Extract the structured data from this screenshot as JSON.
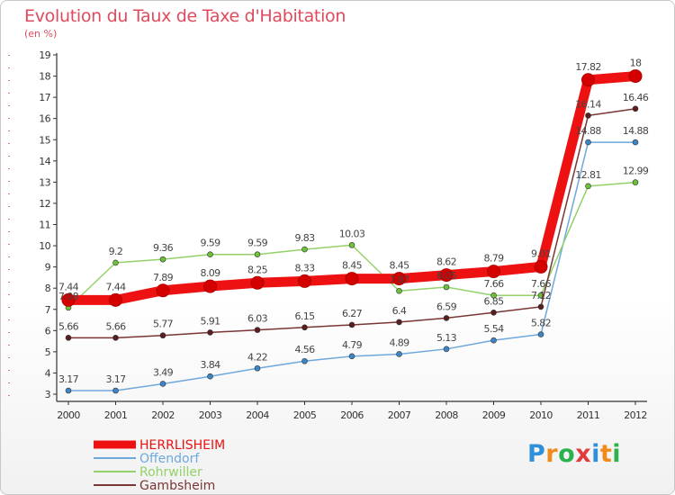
{
  "title": "Evolution du Taux de Taxe d'Habitation",
  "subtitle": "(en %)",
  "logo": {
    "letters": [
      "P",
      "r",
      "o",
      "x",
      "i",
      "t",
      "i"
    ],
    "colors": [
      "#2f8fd8",
      "#f08a1c",
      "#2bb24c",
      "#e23b3b",
      "#2f8fd8",
      "#f08a1c",
      "#2bb24c"
    ]
  },
  "chart_data": {
    "type": "line",
    "x": [
      "2000",
      "2001",
      "2002",
      "2003",
      "2004",
      "2005",
      "2006",
      "2007",
      "2008",
      "2009",
      "2010",
      "2011",
      "2012"
    ],
    "ylim": [
      3,
      19
    ],
    "yticks": [
      3,
      4,
      5,
      6,
      7,
      8,
      9,
      10,
      11,
      12,
      13,
      14,
      15,
      16,
      17,
      18,
      19
    ],
    "grid": false,
    "legend_position": "bottom-left",
    "series": [
      {
        "name": "HERRLISHEIM",
        "color": "#ee1111",
        "marker": "#d40000",
        "values": [
          7.44,
          7.44,
          7.89,
          8.09,
          8.25,
          8.33,
          8.45,
          8.45,
          8.62,
          8.79,
          9.01,
          17.82,
          18
        ],
        "labels": [
          "7.44",
          "7.44",
          "7.89",
          "8.09",
          "8.25",
          "8.33",
          "8.45",
          "8.45",
          "8.62",
          "8.79",
          "9.01",
          "17.82",
          "18"
        ]
      },
      {
        "name": "Offendorf",
        "color": "#6fa8dc",
        "marker": "#3d85c6",
        "values": [
          3.17,
          3.17,
          3.49,
          3.84,
          4.22,
          4.56,
          4.79,
          4.89,
          5.13,
          5.54,
          5.82,
          14.88,
          14.88
        ],
        "labels": [
          "3.17",
          "3.17",
          "3.49",
          "3.84",
          "4.22",
          "4.56",
          "4.79",
          "4.89",
          "5.13",
          "5.54",
          "5.82",
          "14.88",
          "14.88"
        ]
      },
      {
        "name": "Rohrwiller",
        "color": "#93d26a",
        "marker": "#6cc13a",
        "values": [
          7.08,
          9.2,
          9.36,
          9.59,
          9.59,
          9.83,
          10.03,
          7.87,
          8.05,
          7.66,
          7.66,
          12.81,
          12.99
        ],
        "labels": [
          "7.08",
          "9.2",
          "9.36",
          "9.59",
          "9.59",
          "9.83",
          "10.03",
          "7.87",
          "8.05",
          "7.66",
          "7.66",
          "12.81",
          "12.99"
        ]
      },
      {
        "name": "Gambsheim",
        "color": "#7a3535",
        "marker": "#5a1e1e",
        "values": [
          5.66,
          5.66,
          5.77,
          5.91,
          6.03,
          6.15,
          6.27,
          6.4,
          6.59,
          6.85,
          7.12,
          16.14,
          16.46
        ],
        "labels": [
          "5.66",
          "5.66",
          "5.77",
          "5.91",
          "6.03",
          "6.15",
          "6.27",
          "6.4",
          "6.59",
          "6.85",
          "7.12",
          "16.14",
          "16.46"
        ]
      }
    ]
  }
}
